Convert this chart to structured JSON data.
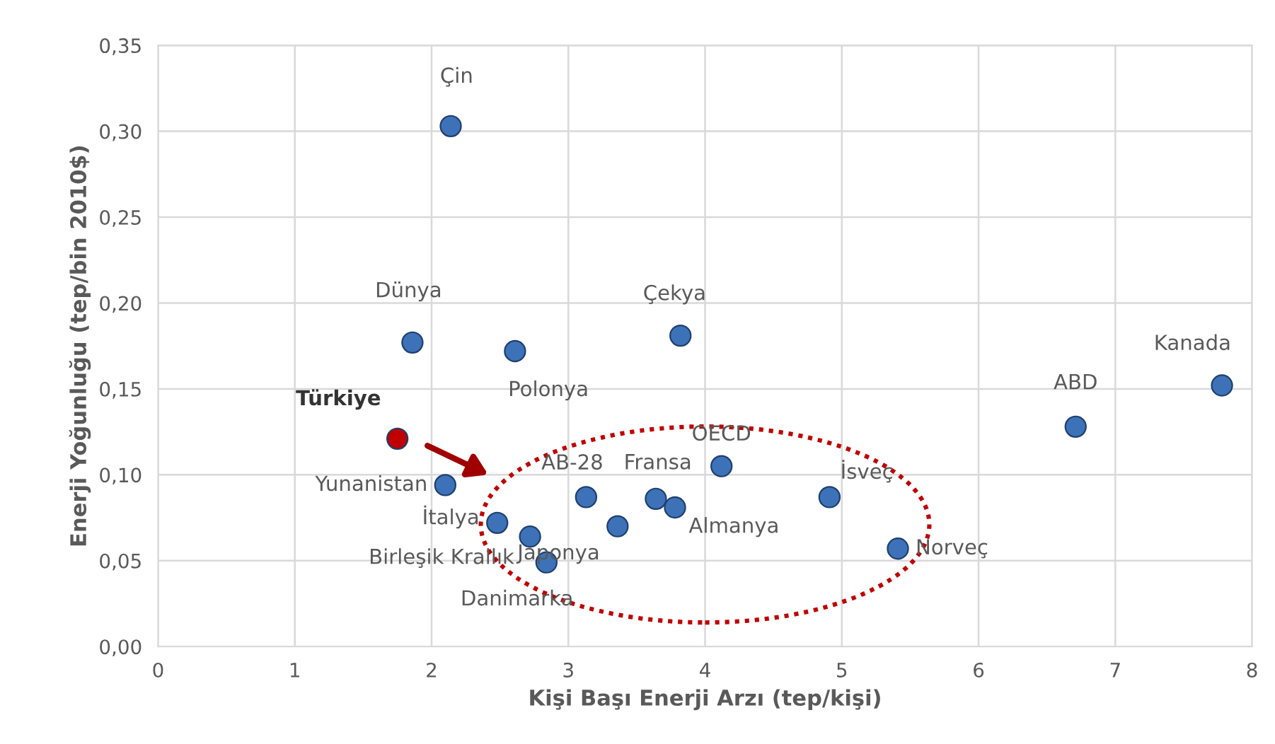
{
  "chart_data": {
    "type": "scatter",
    "xlabel": "Kişi Başı Enerji Arzı (tep/kişi)",
    "ylabel": "Enerji Yoğunluğu (tep/bin 2010$)",
    "x": [
      2.14,
      1.86,
      2.61,
      3.82,
      1.75,
      2.1,
      2.48,
      2.72,
      2.84,
      3.13,
      3.36,
      3.64,
      3.78,
      4.12,
      4.91,
      5.41,
      6.71,
      7.78
    ],
    "values": [
      0.303,
      0.177,
      0.172,
      0.181,
      0.121,
      0.094,
      0.072,
      0.064,
      0.049,
      0.087,
      0.07,
      0.086,
      0.081,
      0.105,
      0.087,
      0.057,
      0.128,
      0.152
    ],
    "colors": [
      "#3d72b8",
      "#3d72b8",
      "#3d72b8",
      "#3d72b8",
      "#c00000",
      "#3d72b8",
      "#3d72b8",
      "#3d72b8",
      "#3d72b8",
      "#3d72b8",
      "#3d72b8",
      "#3d72b8",
      "#3d72b8",
      "#3d72b8",
      "#3d72b8",
      "#3d72b8",
      "#3d72b8",
      "#3d72b8"
    ],
    "annotations": [
      {
        "text": "Çin",
        "x": 2.14,
        "y": 0.303
      },
      {
        "text": "Dünya",
        "x": 1.86,
        "y": 0.177
      },
      {
        "text": "Polonya",
        "x": 2.61,
        "y": 0.172
      },
      {
        "text": "Çekya",
        "x": 3.82,
        "y": 0.181
      },
      {
        "text": "Türkiye",
        "x": 1.75,
        "y": 0.121
      },
      {
        "text": "Yunanistan",
        "x": 2.1,
        "y": 0.094
      },
      {
        "text": "İtalya",
        "x": 2.48,
        "y": 0.072
      },
      {
        "text": "Birleşik Krallık",
        "x": 2.72,
        "y": 0.064
      },
      {
        "text": "Danimarka",
        "x": 2.84,
        "y": 0.049
      },
      {
        "text": "AB-28",
        "x": 3.13,
        "y": 0.087
      },
      {
        "text": "Japonya",
        "x": 3.36,
        "y": 0.07
      },
      {
        "text": "Fransa",
        "x": 3.64,
        "y": 0.086
      },
      {
        "text": "Almanya",
        "x": 3.78,
        "y": 0.081
      },
      {
        "text": "OECD",
        "x": 4.12,
        "y": 0.105
      },
      {
        "text": "İsveç",
        "x": 4.91,
        "y": 0.087
      },
      {
        "text": "Norveç",
        "x": 5.41,
        "y": 0.057
      },
      {
        "text": "ABD",
        "x": 6.71,
        "y": 0.128
      },
      {
        "text": "Kanada",
        "x": 7.78,
        "y": 0.152
      }
    ],
    "xlim": [
      0,
      8
    ],
    "xticks": [
      0,
      1,
      2,
      3,
      4,
      5,
      6,
      7,
      8
    ],
    "ylim": [
      0,
      0.35
    ],
    "yticks": [
      {
        "value": 0,
        "label": "0,00"
      },
      {
        "value": 0.05,
        "label": "0,05"
      },
      {
        "value": 0.1,
        "label": "0,10"
      },
      {
        "value": 0.15,
        "label": "0,15"
      },
      {
        "value": 0.2,
        "label": "0,20"
      },
      {
        "value": 0.25,
        "label": "0,25"
      },
      {
        "value": 0.3,
        "label": "0,30"
      },
      {
        "value": 0.35,
        "label": "0,35"
      }
    ],
    "grid": true,
    "marker": "circle"
  }
}
